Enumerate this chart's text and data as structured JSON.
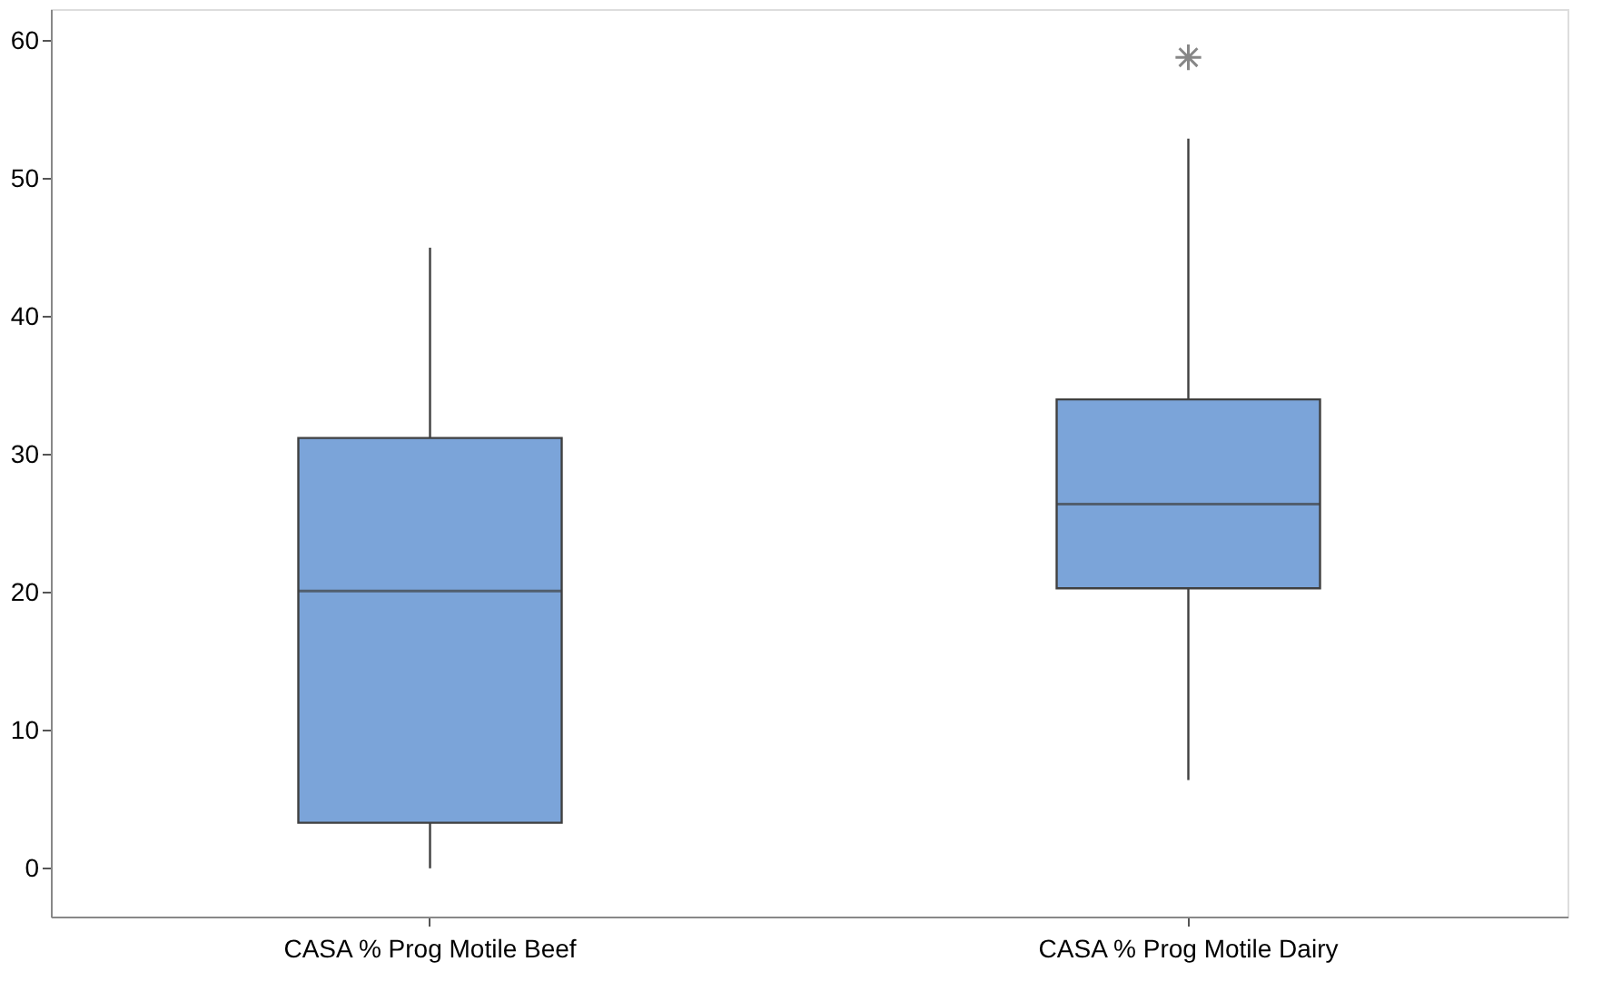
{
  "chart_data": {
    "type": "box",
    "categories": [
      "CASA % Prog Motile Beef",
      "CASA % Prog Motile Dairy"
    ],
    "series": [
      {
        "color": "#7ba4d9",
        "boxes": [
          {
            "low": 0,
            "q1": 3.3,
            "median": 20.1,
            "q3": 31.2,
            "high": 45.0
          },
          {
            "low": 6.4,
            "q1": 20.3,
            "median": 26.4,
            "q3": 34.0,
            "high": 52.9,
            "outliers": [
              58.8
            ]
          }
        ]
      }
    ],
    "ylim": [
      -3.5,
      62.3
    ],
    "yticks": [
      0,
      10,
      20,
      30,
      40,
      50,
      60
    ],
    "grid": false
  }
}
